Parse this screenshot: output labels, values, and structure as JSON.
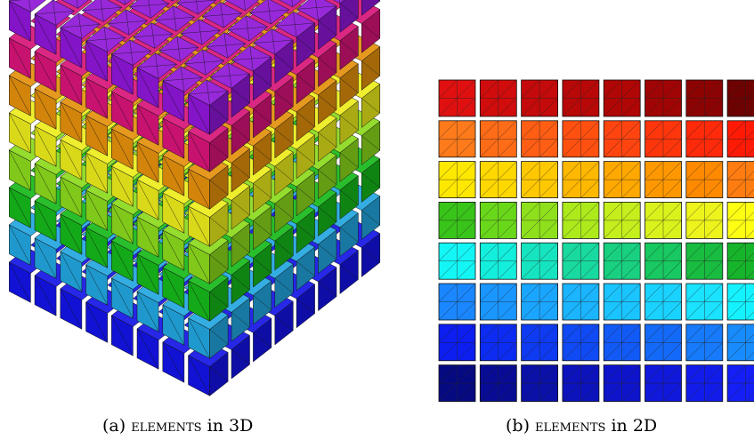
{
  "figure": {
    "panel_a": {
      "caption_label": "(a)",
      "caption_word": "elements",
      "caption_suffix": "in 3D",
      "layer_colors_bottom_to_top": [
        "#1414e6",
        "#22a6df",
        "#16b81a",
        "#8bd91c",
        "#ecec1c",
        "#e4900c",
        "#d81479",
        "#8e16d8"
      ],
      "layer_count": 8,
      "cube_grid": 8
    },
    "panel_b": {
      "caption_label": "(b)",
      "caption_word": "elements",
      "caption_suffix": "in 2D",
      "grid_rows": 8,
      "grid_cols": 8,
      "row_colors": [
        [
          "#e01010",
          "#d00c0c",
          "#c40a0a",
          "#b80808",
          "#b00606",
          "#a00404",
          "#8c0303",
          "#6e0101"
        ],
        [
          "#ff7a1a",
          "#ff6c18",
          "#ff5e14",
          "#ff5010",
          "#ff4410",
          "#ff360c",
          "#ff2a0a",
          "#ff1a06"
        ],
        [
          "#ffe800",
          "#ffd800",
          "#ffc800",
          "#ffb800",
          "#ffa800",
          "#ff9800",
          "#ff8a00",
          "#ff7c10"
        ],
        [
          "#39c41a",
          "#6ad81a",
          "#8ee01c",
          "#acea1c",
          "#c4ee1c",
          "#daf21c",
          "#ecf41c",
          "#ffff14"
        ],
        [
          "#14f6f6",
          "#14eedc",
          "#16e4c0",
          "#18daa0",
          "#18d080",
          "#18c860",
          "#18bc40",
          "#16b42a"
        ],
        [
          "#1a86ff",
          "#1a96ff",
          "#1aa6ff",
          "#1ab4ff",
          "#1ac4ff",
          "#1ad2ff",
          "#1ae2ff",
          "#14f2ff"
        ],
        [
          "#0c1ef0",
          "#0c2cf2",
          "#0e3af2",
          "#104af4",
          "#125af6",
          "#146af8",
          "#167afa",
          "#188cfc"
        ],
        [
          "#060a80",
          "#080c94",
          "#0a10a8",
          "#0c12bc",
          "#0e14cc",
          "#1018dc",
          "#121cea",
          "#141ff6"
        ]
      ]
    }
  }
}
